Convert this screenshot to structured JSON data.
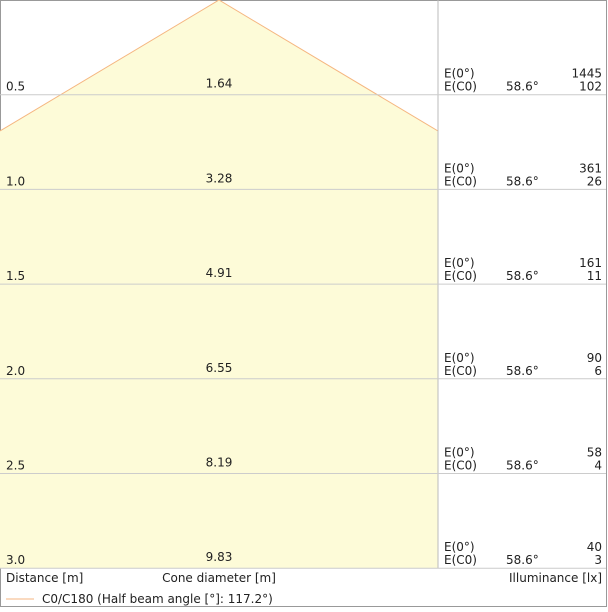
{
  "rows": [
    {
      "distance": "0.5",
      "diameter": "1.64",
      "e0_label": "E(0°)",
      "e0": "1445",
      "ec0_label": "E(C0)",
      "angle": "58.6°",
      "ec0": "102"
    },
    {
      "distance": "1.0",
      "diameter": "3.28",
      "e0_label": "E(0°)",
      "e0": "361",
      "ec0_label": "E(C0)",
      "angle": "58.6°",
      "ec0": "26"
    },
    {
      "distance": "1.5",
      "diameter": "4.91",
      "e0_label": "E(0°)",
      "e0": "161",
      "ec0_label": "E(C0)",
      "angle": "58.6°",
      "ec0": "11"
    },
    {
      "distance": "2.0",
      "diameter": "6.55",
      "e0_label": "E(0°)",
      "e0": "90",
      "ec0_label": "E(C0)",
      "angle": "58.6°",
      "ec0": "6"
    },
    {
      "distance": "2.5",
      "diameter": "8.19",
      "e0_label": "E(0°)",
      "e0": "58",
      "ec0_label": "E(C0)",
      "angle": "58.6°",
      "ec0": "4"
    },
    {
      "distance": "3.0",
      "diameter": "9.83",
      "e0_label": "E(0°)",
      "e0": "40",
      "ec0_label": "E(C0)",
      "angle": "58.6°",
      "ec0": "3"
    }
  ],
  "footer": {
    "distance": "Distance [m]",
    "diameter": "Cone diameter [m]",
    "illuminance": "Illuminance [lx]"
  },
  "legend": "C0/C180 (Half beam angle [°]: 117.2°)"
}
